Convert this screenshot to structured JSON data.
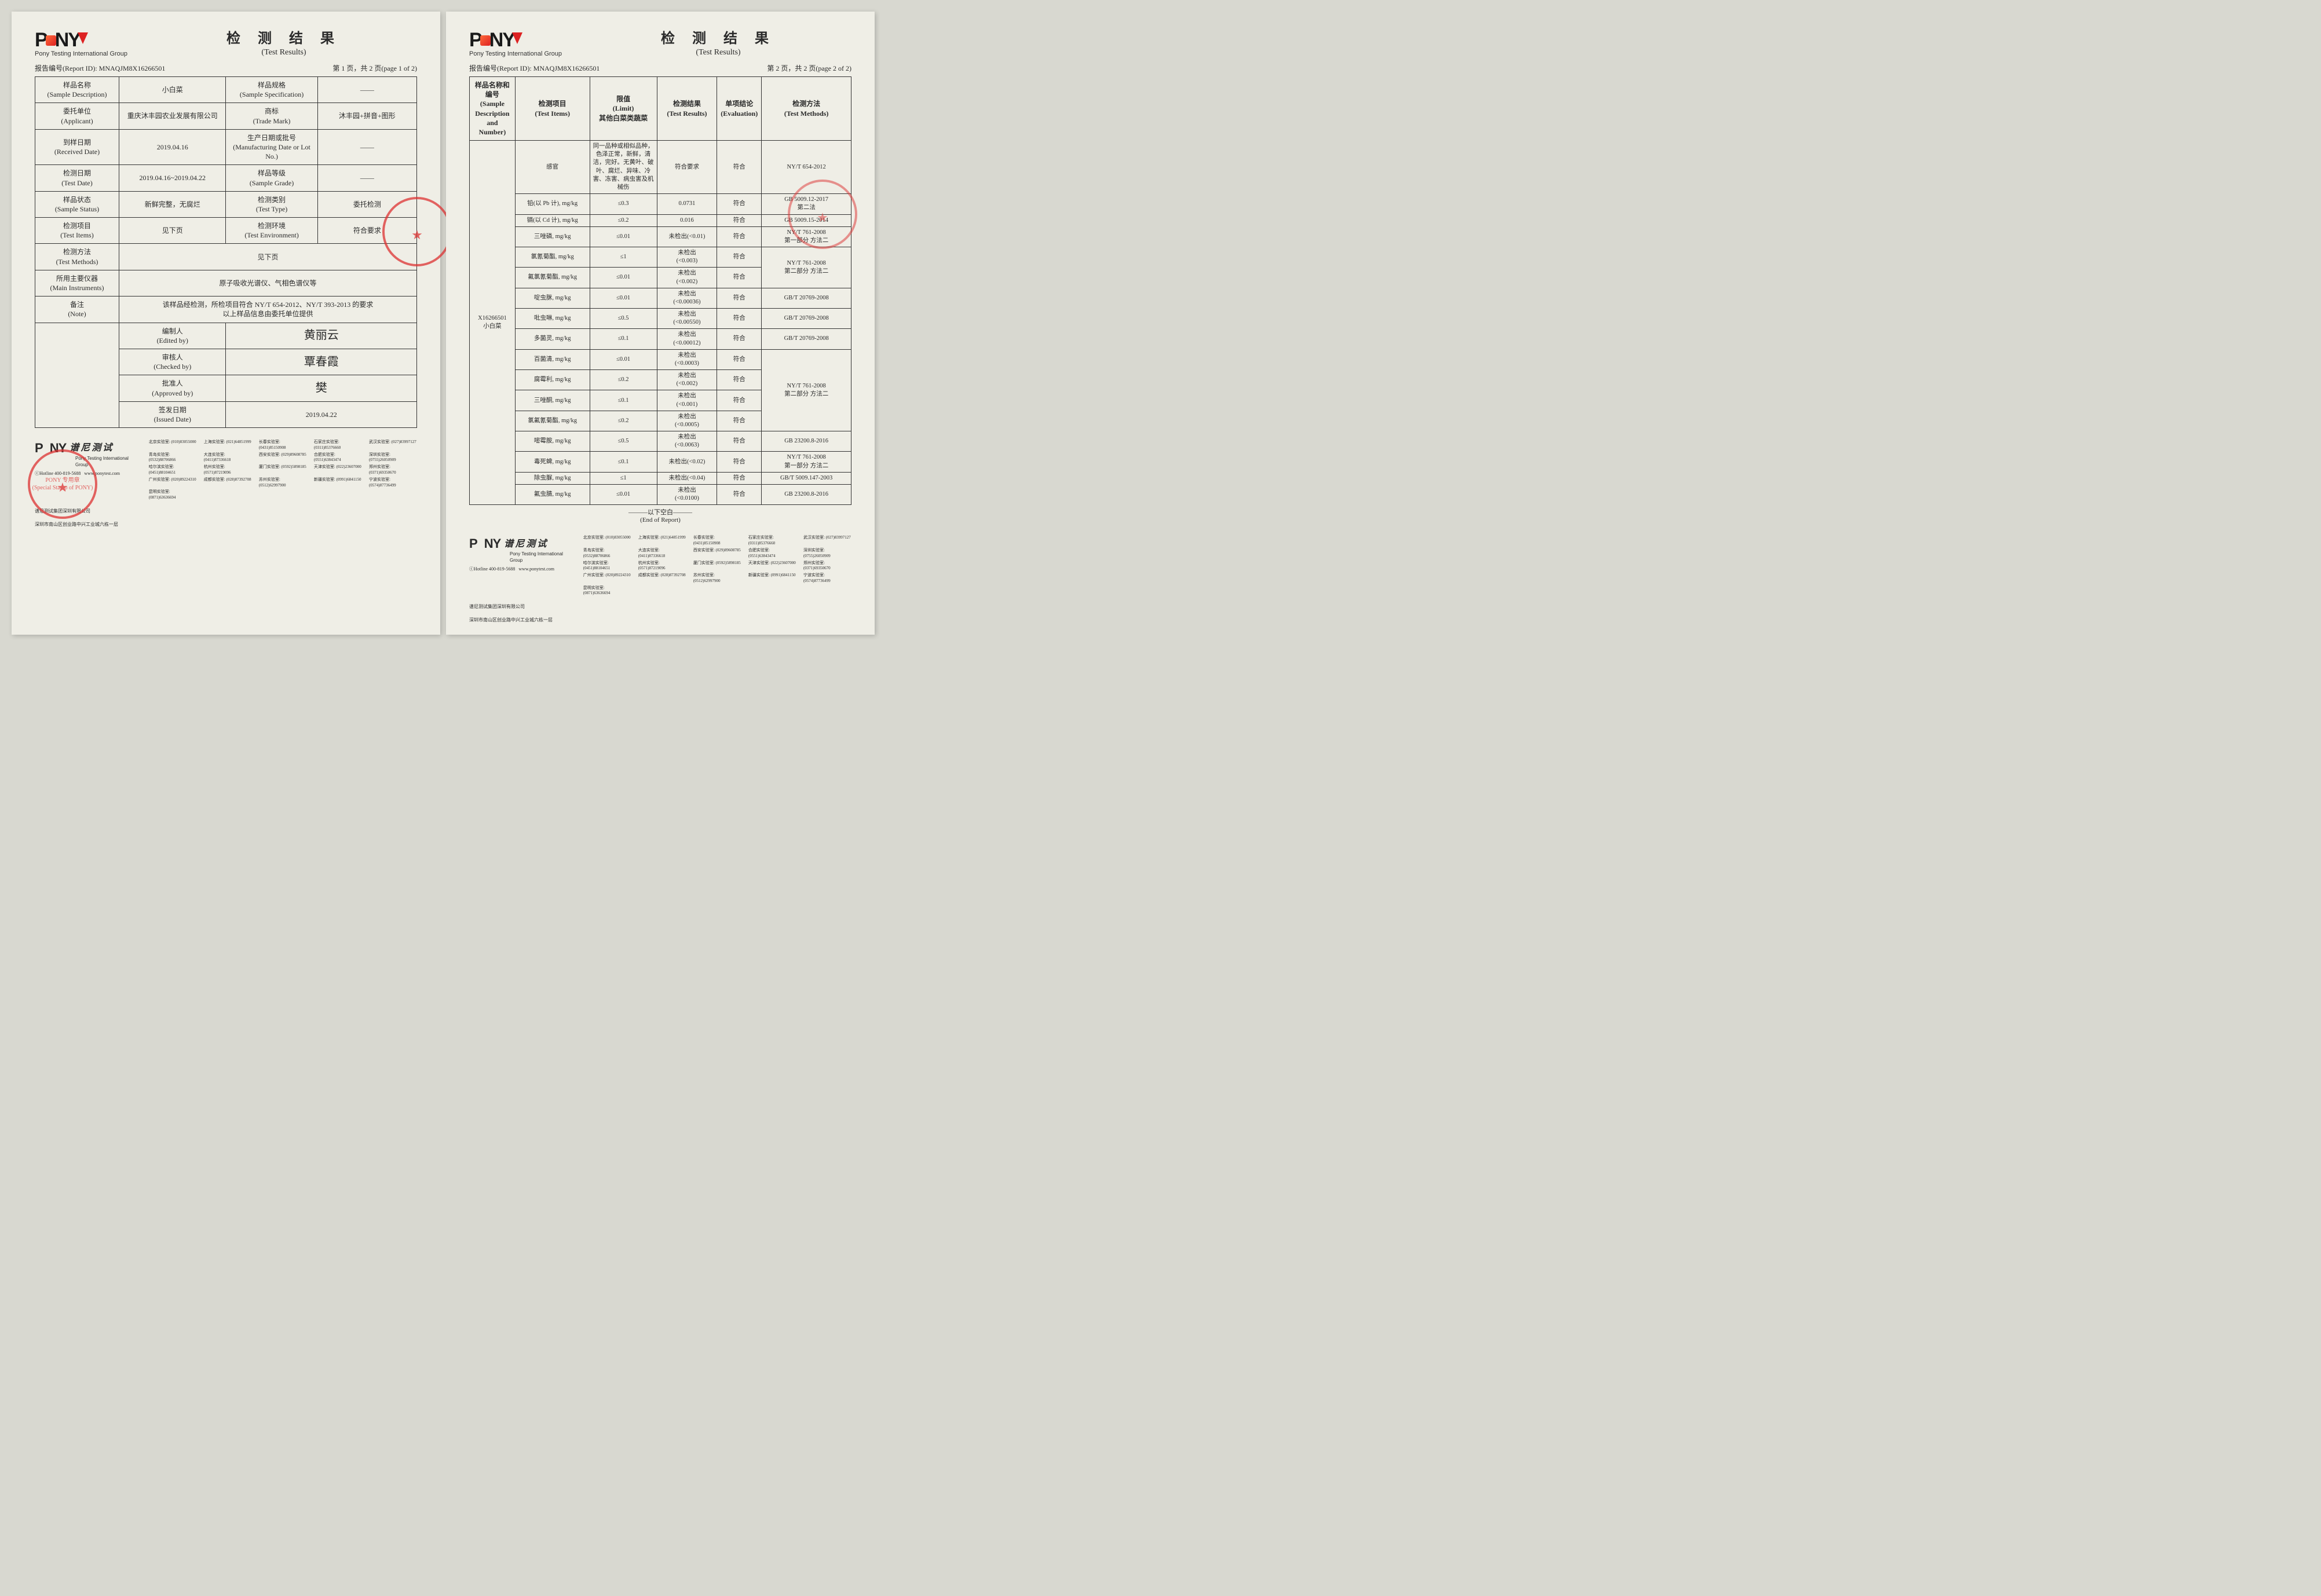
{
  "brand": {
    "name": "PONY",
    "sub_en": "Pony Testing International Group",
    "cn_brand": "谱尼测试"
  },
  "title": {
    "cn": "检 测 结 果",
    "en": "(Test Results)"
  },
  "report_id_label": "报告编号(Report ID):",
  "report_id": "MNAQJM8X16266501",
  "page1_label": "第 1 页，共 2 页(page 1 of 2)",
  "page2_label": "第 2 页，共 2 页(page 2 of 2)",
  "p1": {
    "rows": [
      {
        "l": "样品名称\n(Sample Description)",
        "v": "小白菜",
        "l2": "样品规格\n(Sample Specification)",
        "v2": "——"
      },
      {
        "l": "委托单位\n(Applicant)",
        "v": "重庆沐丰园农业发展有限公司",
        "l2": "商标\n(Trade Mark)",
        "v2": "沐丰园+拼音+图形"
      },
      {
        "l": "到样日期\n(Received Date)",
        "v": "2019.04.16",
        "l2": "生产日期或批号\n(Manufacturing Date or Lot No.)",
        "v2": "——"
      },
      {
        "l": "检测日期\n(Test Date)",
        "v": "2019.04.16~2019.04.22",
        "l2": "样品等级\n(Sample Grade)",
        "v2": "——"
      },
      {
        "l": "样品状态\n(Sample Status)",
        "v": "新鲜完整，无腐烂",
        "l2": "检测类别\n(Test Type)",
        "v2": "委托检测"
      },
      {
        "l": "检测项目\n(Test Items)",
        "v": "见下页",
        "l2": "检测环境\n(Test Environment)",
        "v2": "符合要求"
      }
    ],
    "wide": [
      {
        "l": "检测方法\n(Test Methods)",
        "v": "见下页"
      },
      {
        "l": "所用主要仪器\n(Main Instruments)",
        "v": "原子吸收光谱仪、气相色谱仪等"
      },
      {
        "l": "备注\n(Note)",
        "v": "该样品经检测，所检项目符合 NY/T 654-2012、NY/T 393-2013 的要求\n以上样品信息由委托单位提供"
      }
    ],
    "sign": [
      {
        "l": "编制人\n(Edited by)",
        "v": "黄丽云"
      },
      {
        "l": "审核人\n(Checked by)",
        "v": "覃春霞"
      },
      {
        "l": "批准人\n(Approved by)",
        "v": "樊"
      }
    ],
    "issued": {
      "l": "签发日期\n(Issued Date)",
      "v": "2019.04.22"
    },
    "stamp": "PONY 专用章\n(Special Stamp of PONY)"
  },
  "p2": {
    "headers": [
      "样品名称和编号\n(Sample Description and Number)",
      "检测项目\n(Test Items)",
      "限值\n(Limit)\n其他白菜类蔬菜",
      "检测结果\n(Test Results)",
      "单项结论\n(Evaluation)",
      "检测方法\n(Test Methods)"
    ],
    "sample": "X16266501\n小白菜",
    "rows": [
      {
        "i": "感官",
        "lim": "同一品种或相似品种，色泽正常，新鲜，清洁，完好。无黄叶、破叶、腐烂、异味、冷害、冻害、病虫害及机械伤",
        "res": "符合要求",
        "ev": "符合",
        "m": "NY/T 654-2012"
      },
      {
        "i": "铅(以 Pb 计), mg/kg",
        "lim": "≤0.3",
        "res": "0.0731",
        "ev": "符合",
        "m": "GB 5009.12-2017\n第二法"
      },
      {
        "i": "镉(以 Cd 计), mg/kg",
        "lim": "≤0.2",
        "res": "0.016",
        "ev": "符合",
        "m": "GB 5009.15-2014"
      },
      {
        "i": "三唑磷, mg/kg",
        "lim": "≤0.01",
        "res": "未检出(<0.01)",
        "ev": "符合",
        "m": "NY/T 761-2008\n第一部分 方法二"
      },
      {
        "i": "氯氰菊酯, mg/kg",
        "lim": "≤1",
        "res": "未检出\n(<0.003)",
        "ev": "符合",
        "m": "NY/T 761-2008\n第二部分 方法二",
        "mrows": 2
      },
      {
        "i": "氟氯氰菊酯, mg/kg",
        "lim": "≤0.01",
        "res": "未检出\n(<0.002)",
        "ev": "符合"
      },
      {
        "i": "啶虫脒, mg/kg",
        "lim": "≤0.01",
        "res": "未检出\n(<0.00036)",
        "ev": "符合",
        "m": "GB/T 20769-2008"
      },
      {
        "i": "吡虫啉, mg/kg",
        "lim": "≤0.5",
        "res": "未检出\n(<0.00550)",
        "ev": "符合",
        "m": "GB/T 20769-2008"
      },
      {
        "i": "多菌灵, mg/kg",
        "lim": "≤0.1",
        "res": "未检出\n(<0.00012)",
        "ev": "符合",
        "m": "GB/T 20769-2008"
      },
      {
        "i": "百菌清, mg/kg",
        "lim": "≤0.01",
        "res": "未检出\n(<0.0003)",
        "ev": "符合",
        "m": "NY/T 761-2008\n第二部分 方法二",
        "mrows": 4
      },
      {
        "i": "腐霉利, mg/kg",
        "lim": "≤0.2",
        "res": "未检出\n(<0.002)",
        "ev": "符合"
      },
      {
        "i": "三唑酮, mg/kg",
        "lim": "≤0.1",
        "res": "未检出\n(<0.001)",
        "ev": "符合"
      },
      {
        "i": "氯氟氰菊酯, mg/kg",
        "lim": "≤0.2",
        "res": "未检出\n(<0.0005)",
        "ev": "符合"
      },
      {
        "i": "嘧霉胺, mg/kg",
        "lim": "≤0.5",
        "res": "未检出\n(<0.0063)",
        "ev": "符合",
        "m": "GB 23200.8-2016"
      },
      {
        "i": "毒死蜱, mg/kg",
        "lim": "≤0.1",
        "res": "未检出(<0.02)",
        "ev": "符合",
        "m": "NY/T 761-2008\n第一部分 方法二"
      },
      {
        "i": "除虫脲, mg/kg",
        "lim": "≤1",
        "res": "未检出(<0.04)",
        "ev": "符合",
        "m": "GB/T 5009.147-2003"
      },
      {
        "i": "氟虫腈, mg/kg",
        "lim": "≤0.01",
        "res": "未检出\n(<0.0100)",
        "ev": "符合",
        "m": "GB 23200.8-2016"
      }
    ],
    "end": "———以下空白———\n(End of Report)"
  },
  "footer": {
    "hotline": "ⓒHotline 400-819-5688",
    "site": "www.ponytest.com",
    "addr_cn": "谱尼测试集团深圳有限公司",
    "addr": "深圳市南山区创业路中兴工业城六栋一层",
    "labs": [
      [
        "北京实验室: (010)83055000"
      ],
      [
        "上海实验室: (021)64851999",
        "长春实验室: (0431)85150908",
        "石家庄实验室: (0311)85376660",
        "武汉实验室: (027)83997127"
      ],
      [
        "青岛实验室: (0532)88706866",
        "大连实验室: (0411)87336618",
        "西安实验室: (029)89608785",
        "合肥实验室: (0551)63843474"
      ],
      [
        "深圳实验室: (0755)26050909",
        "哈尔滨实验室: (0451)88104651",
        "杭州实验室: (0571)87219096",
        "厦门实验室: (0592)5898185"
      ],
      [
        "天津实验室: (022)23607000",
        "郑州实验室: (0371)69350670",
        "广州实验室: (020)89224310",
        "成都实验室: (028)87392708"
      ],
      [
        "苏州实验室: (0512)62997900",
        "新疆实验室: (0991)6841150",
        "宁波实验室: (0574)87736499",
        "昆明实验室: (0871)63636694"
      ]
    ]
  }
}
